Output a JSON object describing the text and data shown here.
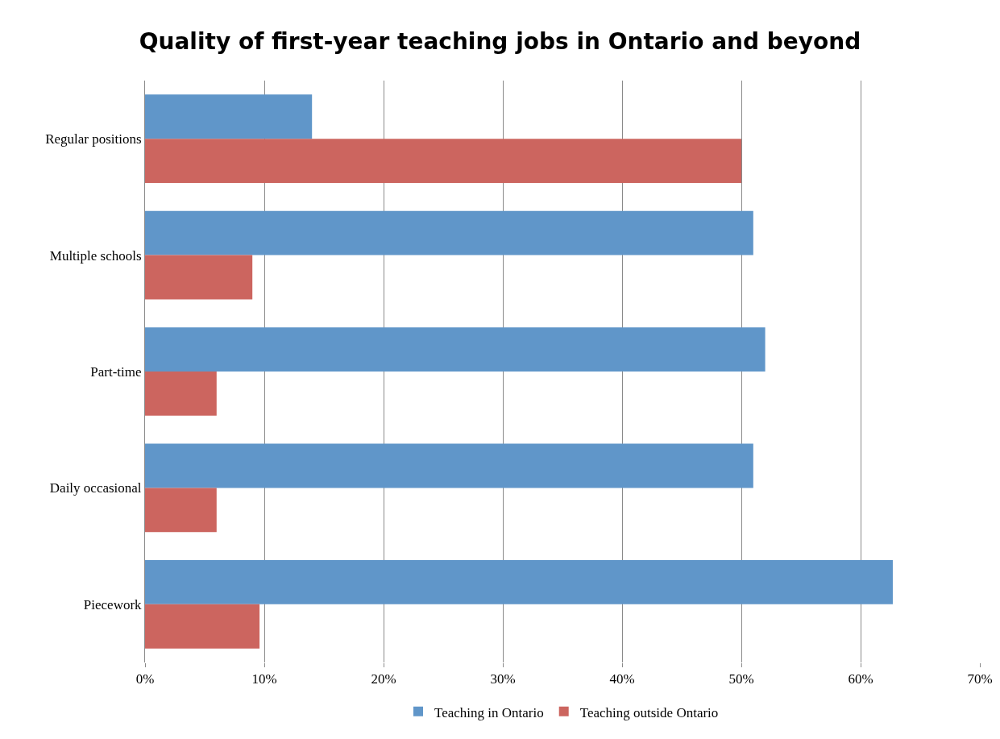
{
  "chart_data": {
    "type": "bar",
    "orientation": "horizontal",
    "title": "Quality of first-year teaching jobs in Ontario and beyond",
    "categories": [
      "Regular positions",
      "Multiple schools",
      "Part-time",
      "Daily occasional",
      "Piecework"
    ],
    "series": [
      {
        "name": "Teaching in Ontario",
        "color": "#6096c9",
        "values": [
          14,
          51,
          52,
          51,
          62.7
        ]
      },
      {
        "name": "Teaching outside Ontario",
        "color": "#cc655f",
        "values": [
          50,
          9,
          6,
          6,
          9.6
        ]
      }
    ],
    "xlim": [
      0,
      70
    ],
    "xticks": [
      {
        "value": 0,
        "label": "0%"
      },
      {
        "value": 10,
        "label": "10%"
      },
      {
        "value": 20,
        "label": "20%"
      },
      {
        "value": 30,
        "label": "30%"
      },
      {
        "value": 40,
        "label": "40%"
      },
      {
        "value": 50,
        "label": "50%"
      },
      {
        "value": 60,
        "label": "60%"
      },
      {
        "value": 70,
        "label": "70%"
      }
    ],
    "grid": "x",
    "legend": "bottom"
  }
}
